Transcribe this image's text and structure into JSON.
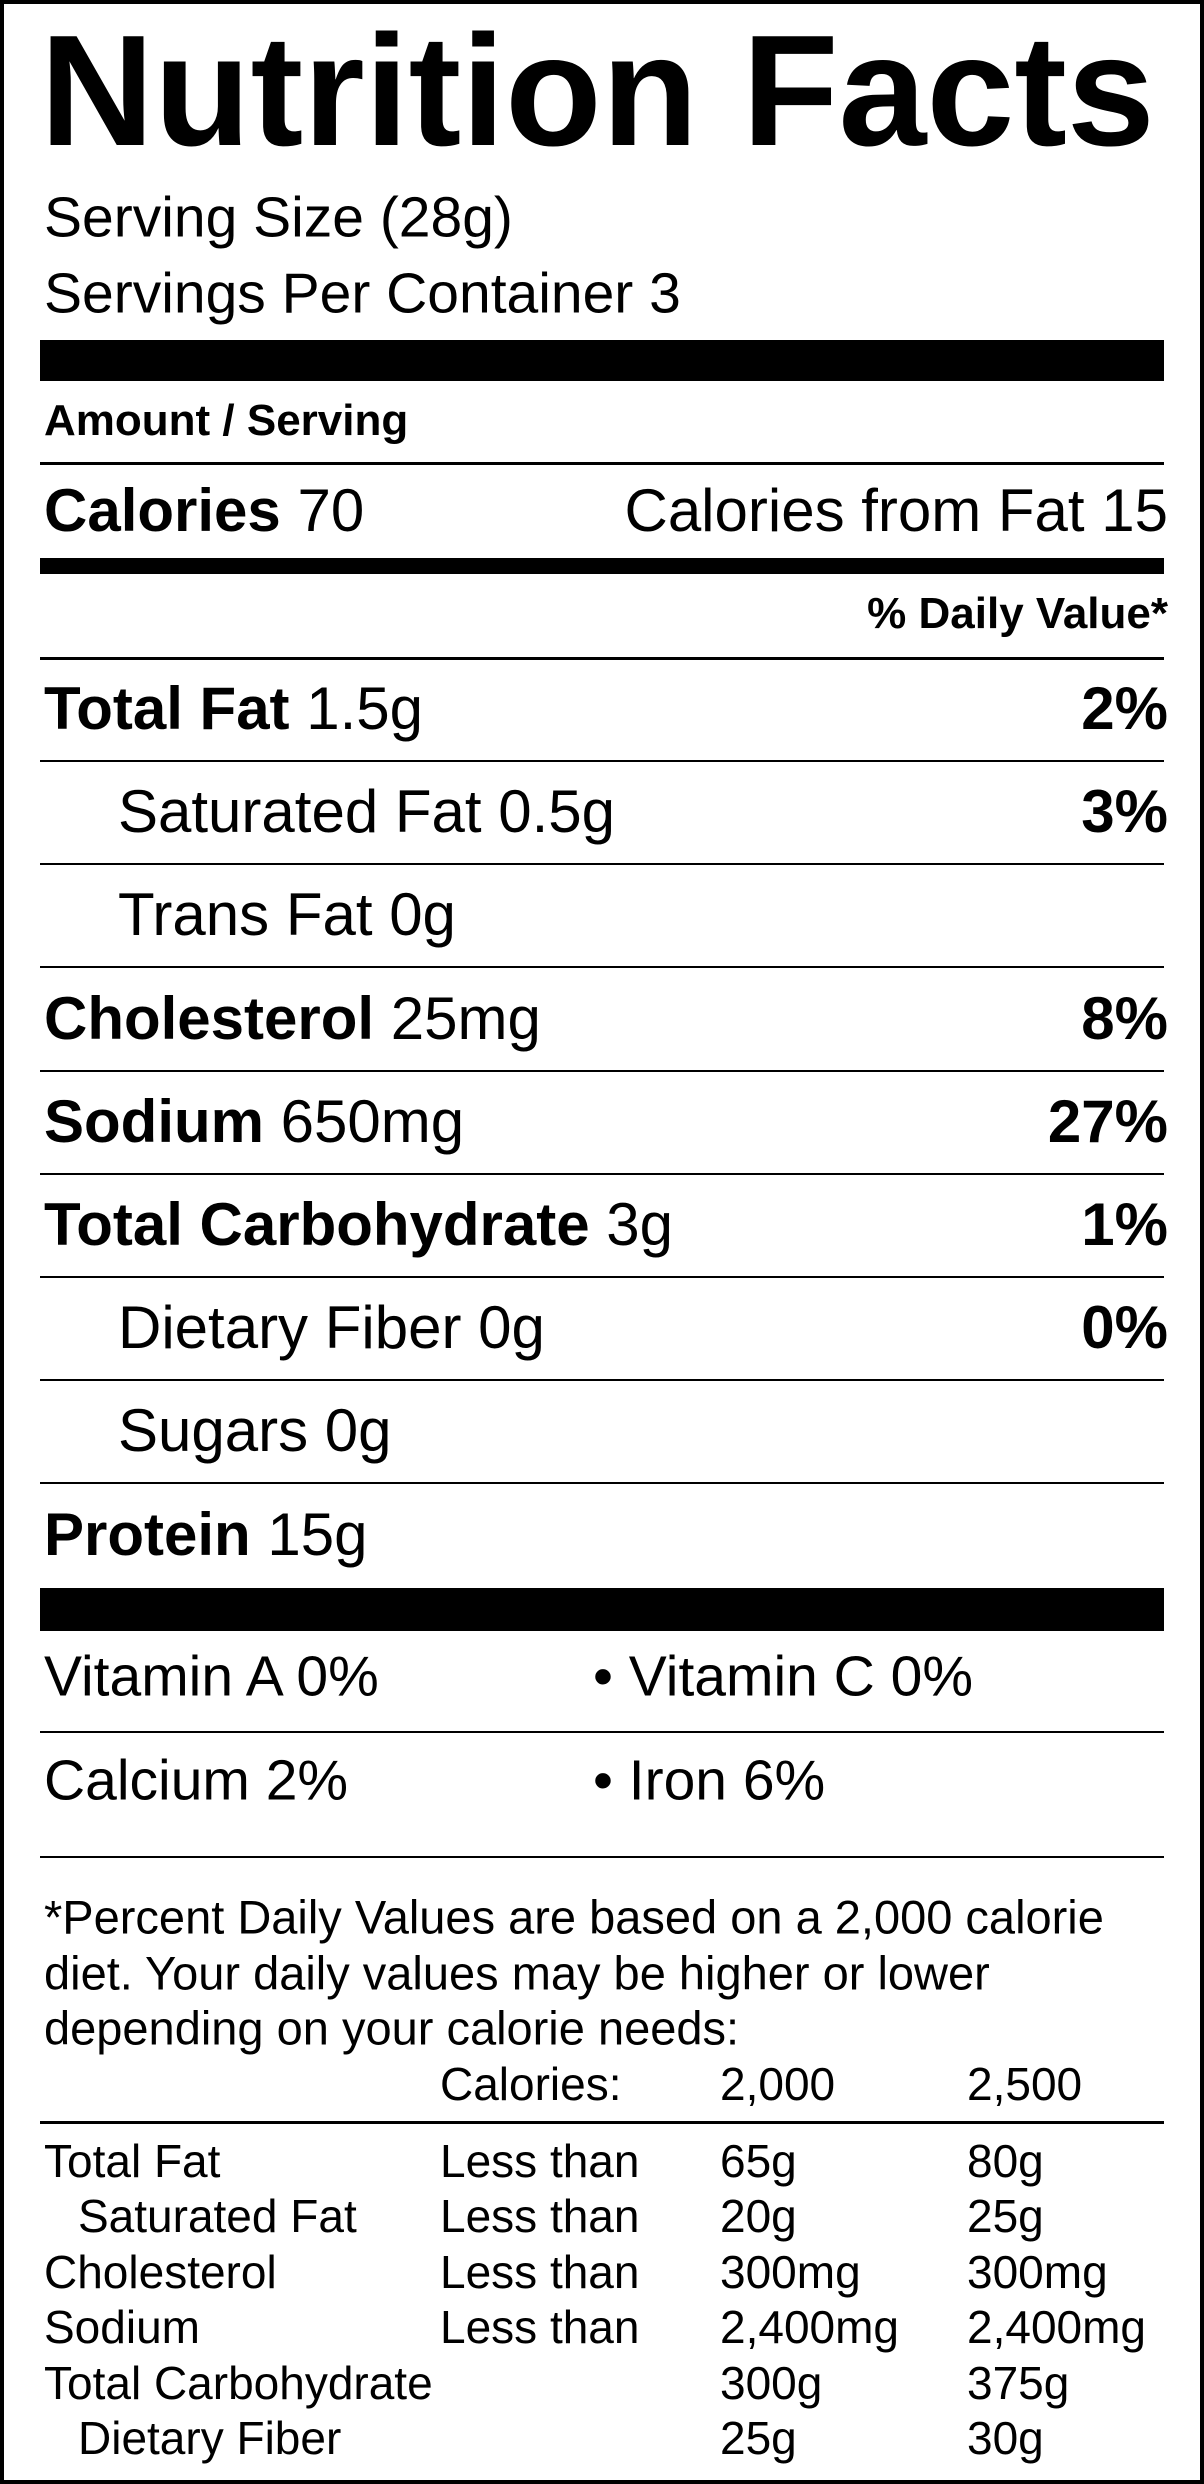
{
  "title": "Nutrition Facts",
  "serving_size": "Serving Size (28g)",
  "servings_per_container": "Servings Per Container 3",
  "amount_per_serving": "Amount / Serving",
  "calories": {
    "label": "Calories",
    "value": "70"
  },
  "calories_from_fat": "Calories from Fat 15",
  "daily_value_header": "% Daily Value*",
  "nutrients": [
    {
      "name": "Total Fat",
      "amount": "1.5g",
      "percent": "2%",
      "indent": false
    },
    {
      "name": "Saturated Fat",
      "amount": "0.5g",
      "percent": "3%",
      "indent": true
    },
    {
      "name": "Trans Fat",
      "amount": "0g",
      "indent": true
    },
    {
      "name": "Cholesterol",
      "amount": "25mg",
      "percent": "8%",
      "indent": false
    },
    {
      "name": "Sodium",
      "amount": "650mg",
      "percent": "27%",
      "indent": false
    },
    {
      "name": "Total Carbohydrate",
      "amount": "3g",
      "percent": "1%",
      "indent": false
    },
    {
      "name": "Dietary Fiber",
      "amount": "0g",
      "percent": "0%",
      "indent": true
    },
    {
      "name": "Sugars",
      "amount": "0g",
      "indent": true
    },
    {
      "name": "Protein",
      "amount": "15g",
      "indent": false
    }
  ],
  "vitamins": [
    [
      "Vitamin A 0%",
      "• Vitamin C 0%"
    ],
    [
      "Calcium 2%",
      "• Iron 6%"
    ]
  ],
  "footnote": [
    "*Percent Daily Values are based on a 2,000 calorie",
    "diet. Your daily values may be higher or lower",
    "depending on your calorie needs:"
  ],
  "reference_table": {
    "header": {
      "label": "Calories:",
      "values": [
        "2,000",
        "2,500"
      ]
    },
    "rows": [
      {
        "name": "Total Fat",
        "limit": "Less than",
        "values": [
          "65g",
          "80g"
        ],
        "indent": false
      },
      {
        "name": "Saturated Fat",
        "limit": "Less than",
        "values": [
          "20g",
          "25g"
        ],
        "indent": true
      },
      {
        "name": "Cholesterol",
        "limit": "Less than",
        "values": [
          "300mg",
          "300mg"
        ],
        "indent": false
      },
      {
        "name": "Sodium",
        "limit": "Less than",
        "values": [
          "2,400mg",
          "2,400mg"
        ],
        "indent": false
      },
      {
        "name": "Total Carbohydrate",
        "values": [
          "300g",
          "375g"
        ],
        "indent": false
      },
      {
        "name": "Dietary Fiber",
        "values": [
          "25g",
          "30g"
        ],
        "indent": true
      }
    ]
  }
}
